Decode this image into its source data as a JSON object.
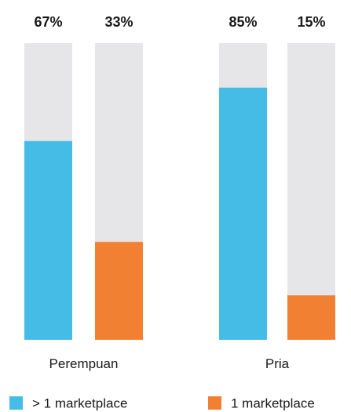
{
  "chart_data": {
    "type": "bar",
    "stacked_to_100": true,
    "ylim": [
      0,
      100
    ],
    "categories": [
      "Perempuan",
      "Pria"
    ],
    "series": [
      {
        "name": "> 1 marketplace",
        "color": "#45bce6",
        "values": [
          67,
          85
        ],
        "labels": [
          "67%",
          "85%"
        ]
      },
      {
        "name": "1 marketplace",
        "color": "#f28033",
        "values": [
          33,
          15
        ],
        "labels": [
          "33%",
          "15%"
        ]
      }
    ],
    "track_color": "#e6e6e8",
    "legend_position": "bottom"
  }
}
